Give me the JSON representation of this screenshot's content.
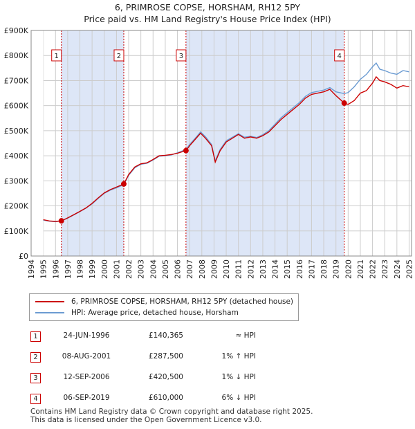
{
  "title_line1": "6, PRIMROSE COPSE, HORSHAM, RH12 5PY",
  "title_line2": "Price paid vs. HM Land Registry's House Price Index (HPI)",
  "colors": {
    "price": "#cc0000",
    "hpi": "#6b9bd2",
    "shade": "#dde6f7",
    "grid": "#cccccc"
  },
  "chart_data": {
    "type": "line",
    "xlim": [
      1994,
      2025.2
    ],
    "ylim": [
      0,
      900000
    ],
    "x_ticks": [
      1994,
      1995,
      1996,
      1997,
      1998,
      1999,
      2000,
      2001,
      2002,
      2003,
      2004,
      2005,
      2006,
      2007,
      2008,
      2009,
      2010,
      2011,
      2012,
      2013,
      2014,
      2015,
      2016,
      2017,
      2018,
      2019,
      2020,
      2021,
      2022,
      2023,
      2024,
      2025
    ],
    "x_tick_labels": [
      "1994",
      "1995",
      "1996",
      "1997",
      "1998",
      "1999",
      "2000",
      "2001",
      "2002",
      "2003",
      "2004",
      "2005",
      "2006",
      "2007",
      "2008",
      "2009",
      "2010",
      "2011",
      "2012",
      "2013",
      "2014",
      "2015",
      "2016",
      "2017",
      "2018",
      "2019",
      "2020",
      "2021",
      "2022",
      "2023",
      "2024",
      "2025"
    ],
    "y_ticks": [
      0,
      100000,
      200000,
      300000,
      400000,
      500000,
      600000,
      700000,
      800000,
      900000
    ],
    "y_tick_labels": [
      "£0",
      "£100K",
      "£200K",
      "£300K",
      "£400K",
      "£500K",
      "£600K",
      "£700K",
      "£800K",
      "£900K"
    ],
    "series": [
      {
        "name": "6, PRIMROSE COPSE, HORSHAM, RH12 5PY (detached house)",
        "color": "#cc0000",
        "x": [
          1995.0,
          1995.5,
          1996.0,
          1996.48,
          1997.0,
          1997.5,
          1998.0,
          1998.5,
          1999.0,
          1999.5,
          2000.0,
          2000.5,
          2001.0,
          2001.6,
          2002.0,
          2002.5,
          2003.0,
          2003.5,
          2004.0,
          2004.5,
          2005.0,
          2005.5,
          2006.0,
          2006.7,
          2007.0,
          2007.5,
          2007.9,
          2008.3,
          2008.8,
          2009.1,
          2009.5,
          2010.0,
          2010.5,
          2011.0,
          2011.5,
          2012.0,
          2012.5,
          2013.0,
          2013.5,
          2014.0,
          2014.5,
          2015.0,
          2015.5,
          2016.0,
          2016.5,
          2017.0,
          2017.5,
          2018.0,
          2018.5,
          2019.0,
          2019.68,
          2020.0,
          2020.5,
          2021.0,
          2021.5,
          2022.0,
          2022.3,
          2022.6,
          2023.0,
          2023.5,
          2024.0,
          2024.5,
          2025.0
        ],
        "values": [
          145000,
          140000,
          138000,
          140365,
          152000,
          165000,
          178000,
          192000,
          210000,
          232000,
          252000,
          265000,
          275000,
          287500,
          325000,
          355000,
          368000,
          372000,
          385000,
          400000,
          402000,
          405000,
          410000,
          420500,
          440000,
          468000,
          490000,
          470000,
          440000,
          375000,
          420000,
          455000,
          470000,
          485000,
          470000,
          475000,
          470000,
          480000,
          495000,
          520000,
          545000,
          565000,
          585000,
          605000,
          630000,
          645000,
          650000,
          655000,
          665000,
          640000,
          610000,
          605000,
          620000,
          650000,
          660000,
          690000,
          715000,
          700000,
          695000,
          685000,
          670000,
          680000,
          675000
        ]
      },
      {
        "name": "HPI: Average price, detached house, Horsham",
        "color": "#6b9bd2",
        "x": [
          1995.0,
          1995.5,
          1996.0,
          1996.48,
          1997.0,
          1997.5,
          1998.0,
          1998.5,
          1999.0,
          1999.5,
          2000.0,
          2000.5,
          2001.0,
          2001.6,
          2002.0,
          2002.5,
          2003.0,
          2003.5,
          2004.0,
          2004.5,
          2005.0,
          2005.5,
          2006.0,
          2006.7,
          2007.0,
          2007.5,
          2007.9,
          2008.3,
          2008.8,
          2009.1,
          2009.5,
          2010.0,
          2010.5,
          2011.0,
          2011.5,
          2012.0,
          2012.5,
          2013.0,
          2013.5,
          2014.0,
          2014.5,
          2015.0,
          2015.5,
          2016.0,
          2016.5,
          2017.0,
          2017.5,
          2018.0,
          2018.5,
          2019.0,
          2019.68,
          2020.0,
          2020.5,
          2021.0,
          2021.5,
          2022.0,
          2022.3,
          2022.6,
          2023.0,
          2023.5,
          2024.0,
          2024.5,
          2025.0
        ],
        "values": [
          143000,
          139000,
          137000,
          140000,
          151000,
          164000,
          177000,
          191000,
          208000,
          230000,
          250000,
          263000,
          272000,
          285000,
          322000,
          352000,
          366000,
          370000,
          383000,
          398000,
          400000,
          403000,
          412000,
          425000,
          445000,
          472000,
          495000,
          476000,
          445000,
          380000,
          425000,
          460000,
          474000,
          488000,
          474000,
          478000,
          473000,
          484000,
          500000,
          526000,
          552000,
          572000,
          592000,
          612000,
          637000,
          652000,
          657000,
          662000,
          672000,
          655000,
          648000,
          652000,
          675000,
          705000,
          725000,
          755000,
          770000,
          745000,
          740000,
          730000,
          725000,
          740000,
          735000
        ]
      }
    ],
    "sales": [
      {
        "label": "1",
        "x": 1996.48,
        "value": 140365,
        "date": "24-JUN-1996",
        "price": "£140,365",
        "hpi": "≈ HPI"
      },
      {
        "label": "2",
        "x": 2001.6,
        "value": 287500,
        "date": "08-AUG-2001",
        "price": "£287,500",
        "hpi": "1% ↑ HPI"
      },
      {
        "label": "3",
        "x": 2006.7,
        "value": 420500,
        "date": "12-SEP-2006",
        "price": "£420,500",
        "hpi": "1% ↓ HPI"
      },
      {
        "label": "4",
        "x": 2019.68,
        "value": 610000,
        "date": "06-SEP-2019",
        "price": "£610,000",
        "hpi": "6% ↓ HPI"
      }
    ],
    "shaded_ranges": [
      [
        1996.48,
        2001.6
      ],
      [
        2006.7,
        2019.68
      ]
    ]
  },
  "legend": {
    "price_label": "6, PRIMROSE COPSE, HORSHAM, RH12 5PY (detached house)",
    "hpi_label": "HPI: Average price, detached house, Horsham"
  },
  "footer": {
    "line1": "Contains HM Land Registry data © Crown copyright and database right 2025.",
    "line2": "This data is licensed under the Open Government Licence v3.0."
  }
}
